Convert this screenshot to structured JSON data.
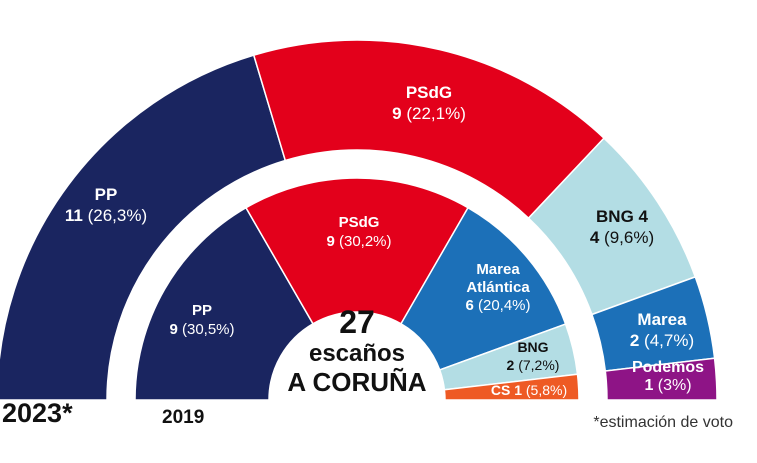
{
  "center": {
    "seats_label": "27",
    "line2": "escaños",
    "line3": "A CORUÑA"
  },
  "footnote": "*estimación de voto",
  "chart_data": [
    {
      "type": "parliament",
      "year_label": "2023*",
      "total_seats": 27,
      "series": [
        {
          "name": "PP",
          "seats": 11,
          "pct": "26,3%",
          "label_name": "PP",
          "label_seats": "11",
          "label_pct": "(26,3%)",
          "color": "#1a2560"
        },
        {
          "name": "PSdG",
          "seats": 9,
          "pct": "22,1%",
          "label_name": "PSdG",
          "label_seats": "9",
          "label_pct": "(22,1%)",
          "color": "#e3001b"
        },
        {
          "name": "BNG 4",
          "seats": 4,
          "pct": "9,6%",
          "label_name": "BNG 4",
          "label_seats": "4",
          "label_pct": "(9,6%)",
          "color": "#b3dde4"
        },
        {
          "name": "Marea",
          "seats": 2,
          "pct": "4,7%",
          "label_name": "Marea",
          "label_seats": "2",
          "label_pct": "(4,7%)",
          "color": "#1c70b8"
        },
        {
          "name": "Podemos",
          "seats": 1,
          "pct": "3%",
          "label_name": "Podemos",
          "label_seats": "1",
          "label_pct": "(3%)",
          "color": "#8e1486"
        }
      ]
    },
    {
      "type": "parliament",
      "year_label": "2019",
      "total_seats": 27,
      "series": [
        {
          "name": "PP",
          "seats": 9,
          "pct": "30,5%",
          "label_name": "PP",
          "label_seats": "9",
          "label_pct": "(30,5%)",
          "color": "#1a2560"
        },
        {
          "name": "PSdG",
          "seats": 9,
          "pct": "30,2%",
          "label_name": "PSdG",
          "label_seats": "9",
          "label_pct": "(30,2%)",
          "color": "#e3001b"
        },
        {
          "name": "Marea Atlántica",
          "seats": 6,
          "pct": "20,4%",
          "label_name": "Marea Atlántica",
          "label_seats": "6",
          "label_pct": "(20,4%)",
          "color": "#1c70b8"
        },
        {
          "name": "BNG",
          "seats": 2,
          "pct": "7,2%",
          "label_name": "BNG",
          "label_seats": "2",
          "label_pct": "(7,2%)",
          "color": "#b3dde4"
        },
        {
          "name": "CS",
          "seats": 1,
          "pct": "5,8%",
          "label_name": "CS 1",
          "label_seats": "",
          "label_pct": "(5,8%)",
          "color": "#ee5a24"
        }
      ]
    }
  ]
}
